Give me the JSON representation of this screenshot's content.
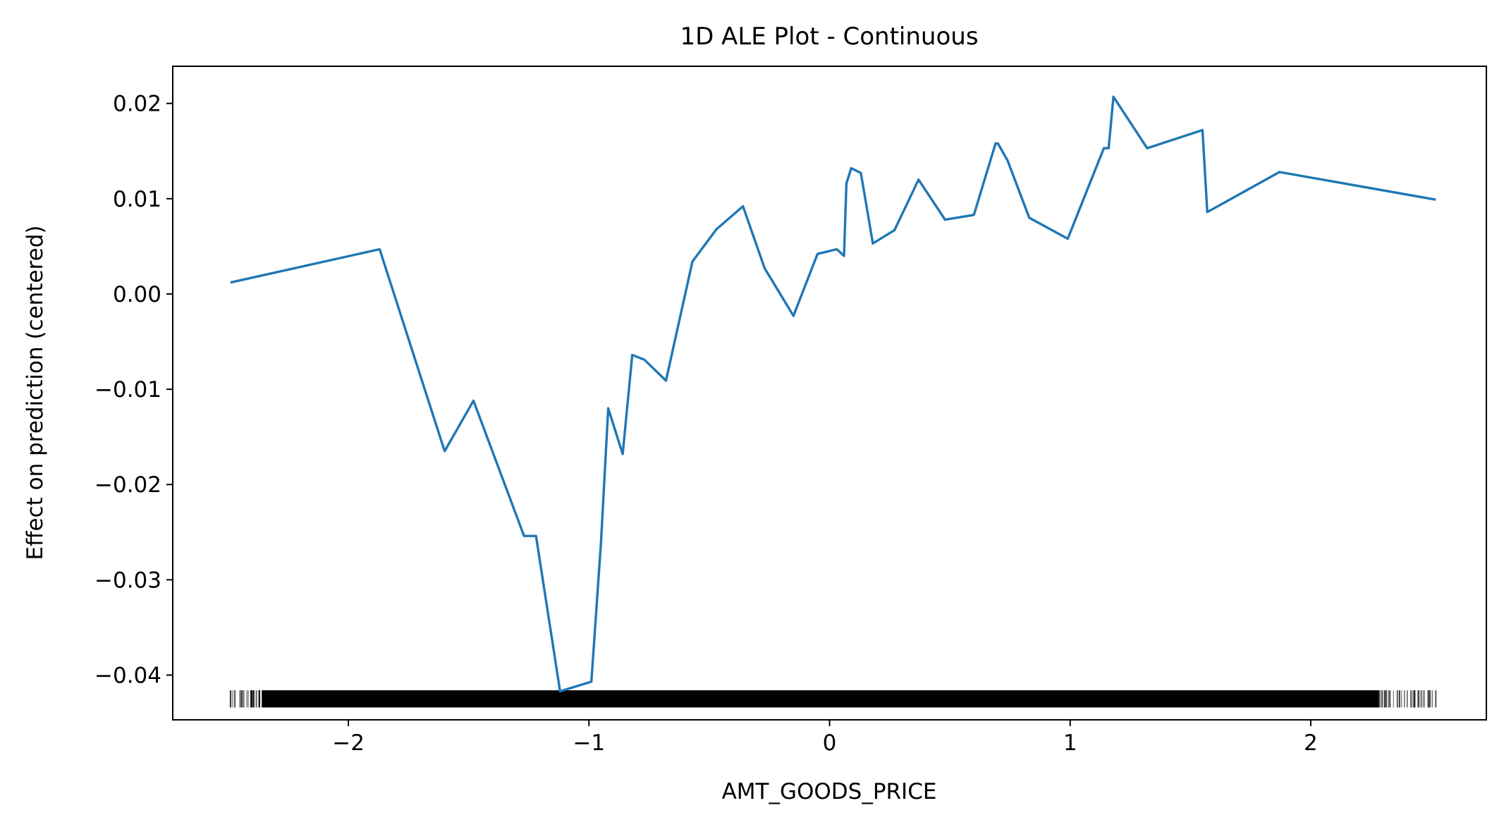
{
  "chart_data": {
    "type": "line",
    "title": "1D ALE Plot - Continuous",
    "xlabel": "AMT_GOODS_PRICE",
    "ylabel": "Effect on prediction (centered)",
    "xlim": [
      -2.73,
      2.73
    ],
    "ylim": [
      -0.0447,
      0.0239
    ],
    "x_ticks": [
      -2,
      -1,
      0,
      1,
      2
    ],
    "x_tick_labels": [
      "−2",
      "−1",
      "0",
      "1",
      "2"
    ],
    "y_ticks": [
      0.02,
      0.01,
      0.0,
      -0.01,
      -0.02,
      -0.03,
      -0.04
    ],
    "y_tick_labels": [
      "0.02",
      "0.01",
      "0.00",
      "−0.01",
      "−0.02",
      "−0.03",
      "−0.04"
    ],
    "grid": false,
    "line_color": "#1f77b4",
    "rug_color": "#000000",
    "series": [
      {
        "x": [
          -2.49,
          -1.87,
          -1.6,
          -1.48,
          -1.27,
          -1.22,
          -1.12,
          -0.99,
          -0.95,
          -0.92,
          -0.86,
          -0.82,
          -0.77,
          -0.68,
          -0.57,
          -0.47,
          -0.36,
          -0.27,
          -0.15,
          -0.05,
          0.03,
          0.06,
          0.07,
          0.09,
          0.13,
          0.18,
          0.27,
          0.37,
          0.48,
          0.6,
          0.69,
          0.7,
          0.74,
          0.83,
          0.99,
          1.14,
          1.16,
          1.18,
          1.32,
          1.55,
          1.57,
          1.87,
          2.52
        ],
        "y": [
          0.0012,
          0.0047,
          -0.0165,
          -0.0112,
          -0.0254,
          -0.0254,
          -0.0417,
          -0.0407,
          -0.026,
          -0.012,
          -0.0168,
          -0.0064,
          -0.0069,
          -0.0091,
          0.0034,
          0.0068,
          0.0092,
          0.0027,
          -0.0023,
          0.0042,
          0.0047,
          0.004,
          0.0116,
          0.0132,
          0.0127,
          0.0053,
          0.0067,
          0.012,
          0.0078,
          0.0083,
          0.0158,
          0.0158,
          0.014,
          0.008,
          0.0058,
          0.0153,
          0.0153,
          0.0207,
          0.0153,
          0.0172,
          0.0086,
          0.0128,
          0.0099
        ]
      }
    ],
    "rug": {
      "y_range": [
        -0.0434,
        -0.0416
      ],
      "x_min": -2.49,
      "x_max": 2.52,
      "dense_min": -2.36,
      "dense_max": 2.28
    }
  }
}
